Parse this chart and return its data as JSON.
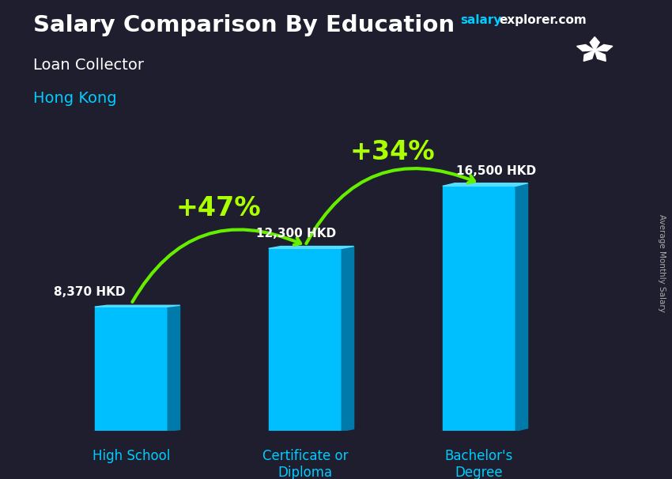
{
  "title_main": "Salary Comparison By Education",
  "title_sub1": "Loan Collector",
  "title_sub2": "Hong Kong",
  "ylabel": "Average Monthly Salary",
  "website_salary": "salary",
  "website_rest": "explorer.com",
  "categories": [
    "High School",
    "Certificate or\nDiploma",
    "Bachelor's\nDegree"
  ],
  "values": [
    8370,
    12300,
    16500
  ],
  "labels": [
    "8,370 HKD",
    "12,300 HKD",
    "16,500 HKD"
  ],
  "pct_labels": [
    "+47%",
    "+34%"
  ],
  "bar_color_face": "#00bfff",
  "bar_color_side": "#007aaa",
  "bar_color_top": "#55ddff",
  "arrow_color": "#66ee00",
  "pct_color": "#aaff00",
  "label_color": "#ffffff",
  "xtick_color": "#00ccff",
  "website_salary_color": "#00ccff",
  "website_rest_color": "#ffffff",
  "title_color": "#ffffff",
  "subtitle_color": "#ffffff",
  "hongkong_color": "#00ccff",
  "ylabel_color": "#aaaaaa",
  "flag_bg": "#e60026",
  "figsize": [
    8.5,
    6.06
  ],
  "dpi": 100
}
